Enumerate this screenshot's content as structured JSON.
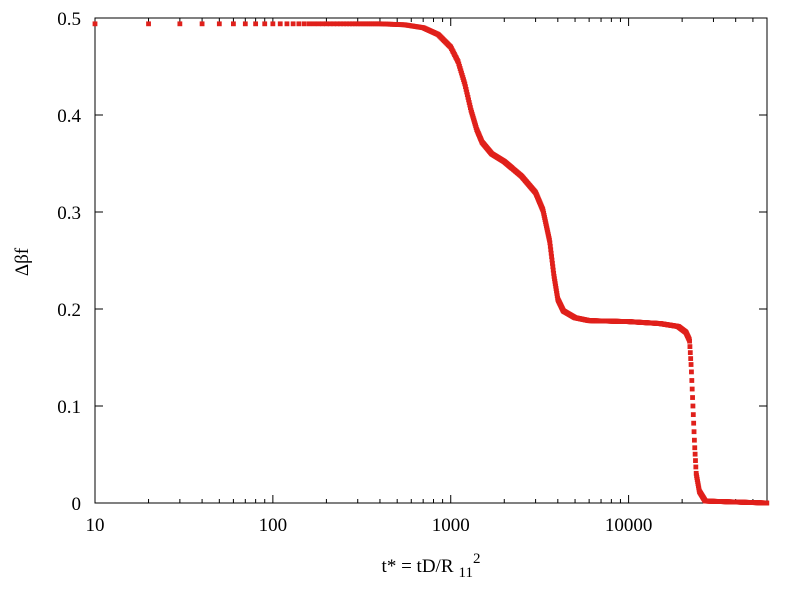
{
  "chart_data": {
    "type": "scatter",
    "title": "",
    "xlabel": {
      "main": "t* = tD/R",
      "subscript": "11",
      "superscript": "2"
    },
    "ylabel": "Δβf",
    "xscale": "log",
    "xlim": [
      10,
      60000
    ],
    "ylim": [
      0,
      0.5
    ],
    "x_ticks": [
      10,
      100,
      1000,
      10000
    ],
    "x_tick_labels": [
      "10",
      "100",
      "1000",
      "10000"
    ],
    "y_ticks": [
      0,
      0.1,
      0.2,
      0.3,
      0.4,
      0.5
    ],
    "y_tick_labels": [
      "0",
      "0.1",
      "0.2",
      "0.3",
      "0.4",
      "0.5"
    ],
    "grid": false,
    "legend": "none",
    "marker_color": "#e0201b",
    "series": [
      {
        "sampling": "points at t* = 10, 20, 30, ... up to about 60000 (step 10)",
        "curve_points": [
          [
            10,
            0.494
          ],
          [
            200,
            0.494
          ],
          [
            400,
            0.494
          ],
          [
            550,
            0.493
          ],
          [
            700,
            0.49
          ],
          [
            850,
            0.483
          ],
          [
            1000,
            0.47
          ],
          [
            1100,
            0.455
          ],
          [
            1200,
            0.432
          ],
          [
            1300,
            0.405
          ],
          [
            1400,
            0.385
          ],
          [
            1500,
            0.372
          ],
          [
            1700,
            0.36
          ],
          [
            2000,
            0.352
          ],
          [
            2500,
            0.337
          ],
          [
            3000,
            0.32
          ],
          [
            3300,
            0.302
          ],
          [
            3600,
            0.27
          ],
          [
            3800,
            0.235
          ],
          [
            4000,
            0.21
          ],
          [
            4300,
            0.198
          ],
          [
            5000,
            0.191
          ],
          [
            6000,
            0.188
          ],
          [
            10000,
            0.187
          ],
          [
            15000,
            0.185
          ],
          [
            19000,
            0.182
          ],
          [
            21000,
            0.176
          ],
          [
            22000,
            0.168
          ],
          [
            22500,
            0.14
          ],
          [
            23000,
            0.1
          ],
          [
            23500,
            0.06
          ],
          [
            24000,
            0.03
          ],
          [
            25000,
            0.012
          ],
          [
            27000,
            0.002
          ],
          [
            60000,
            0.0
          ]
        ]
      }
    ]
  }
}
